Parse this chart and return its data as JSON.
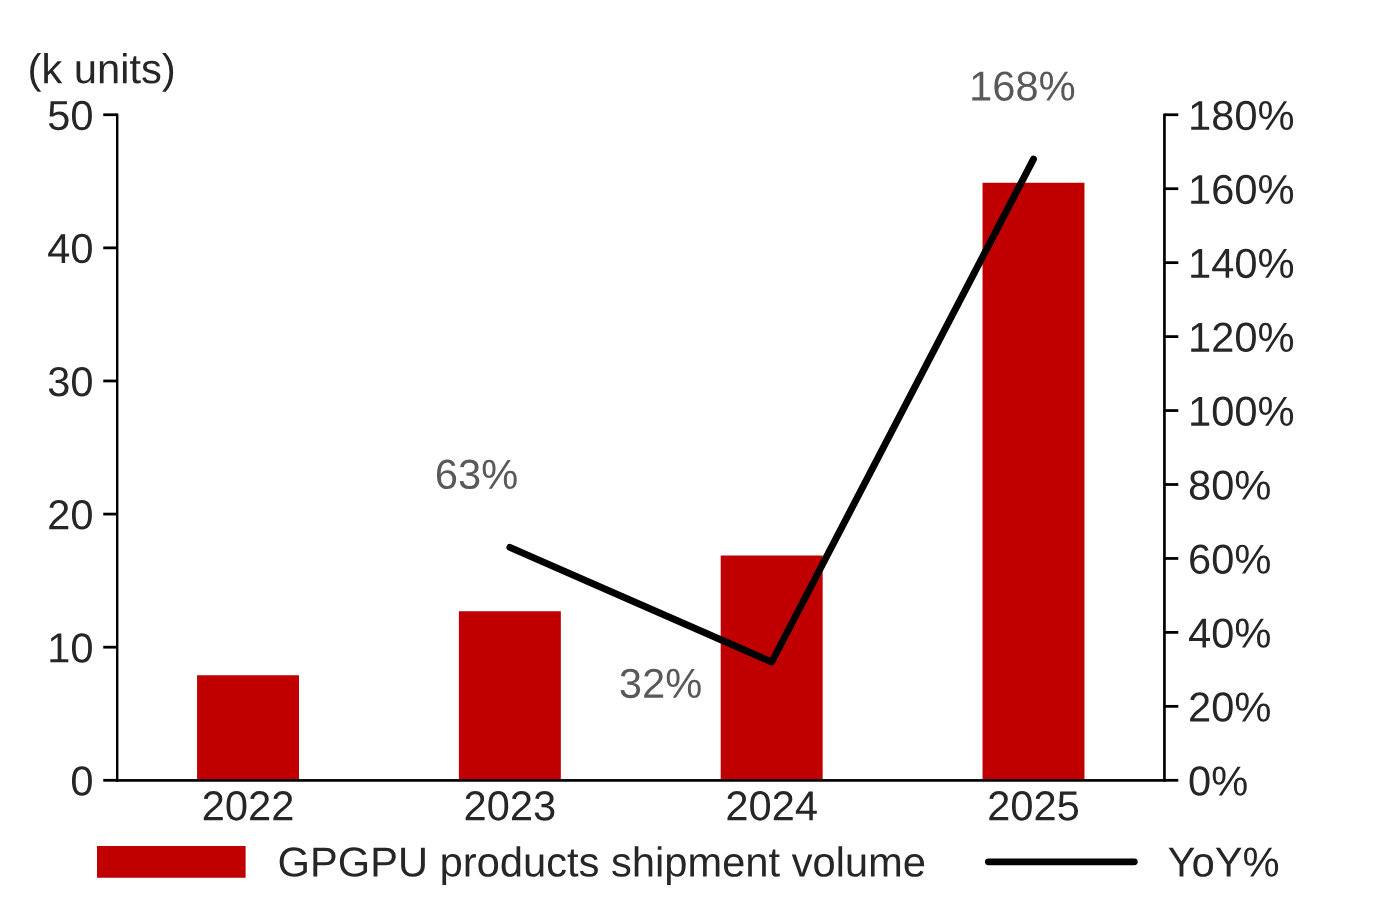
{
  "chart_data": {
    "type": "bar",
    "ylabel": "(k units)",
    "categories": [
      "2022",
      "2023",
      "2024",
      "2025"
    ],
    "series": [
      {
        "name": "GPGPU products shipment volume",
        "color": "#c00000",
        "values": [
          8,
          12.8,
          17,
          45
        ]
      },
      {
        "name": "YoY%",
        "type": "line",
        "axis": "y2",
        "color": "#000000",
        "values": [
          null,
          63,
          32,
          168
        ],
        "value_labels": [
          null,
          "63%",
          "32%",
          "168%"
        ]
      }
    ],
    "ylim": [
      0,
      50
    ],
    "yticks": [
      0,
      10,
      20,
      30,
      40,
      50
    ],
    "y2lim": [
      0,
      180
    ],
    "y2ticks": [
      {
        "value": 0,
        "label": "0%"
      },
      {
        "value": 20,
        "label": "20%"
      },
      {
        "value": 40,
        "label": "40%"
      },
      {
        "value": 60,
        "label": "60%"
      },
      {
        "value": 80,
        "label": "80%"
      },
      {
        "value": 100,
        "label": "100%"
      },
      {
        "value": 120,
        "label": "120%"
      },
      {
        "value": 140,
        "label": "140%"
      },
      {
        "value": 160,
        "label": "160%"
      },
      {
        "value": 180,
        "label": "180%"
      }
    ],
    "grid": false,
    "legend": "bottom",
    "marker": "none",
    "line_style": "solid"
  }
}
